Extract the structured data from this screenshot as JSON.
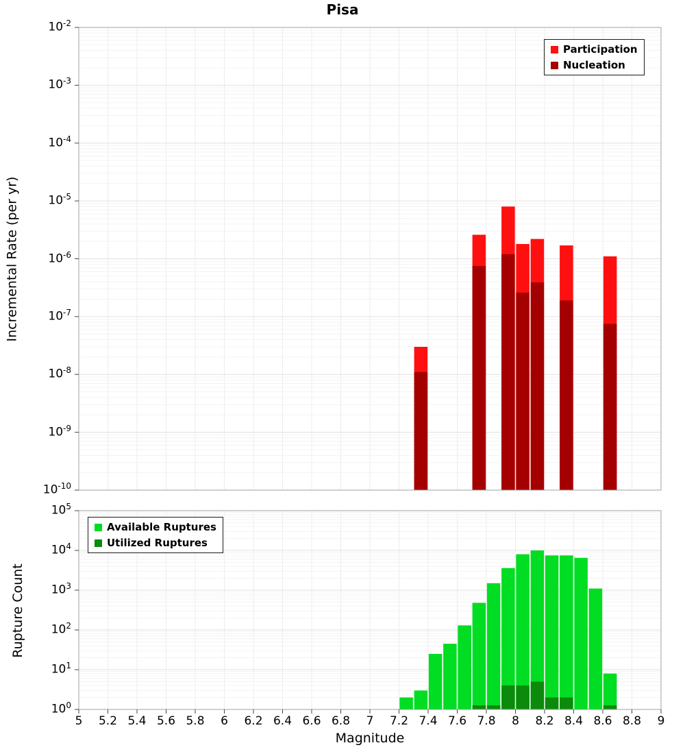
{
  "title": "Pisa",
  "y_tick_base": "10",
  "colors": {
    "participation": "#ff1010",
    "nucleation": "#a40000",
    "available": "#00dd22",
    "utilized": "#0b8a0b",
    "grid_major": "#e0e0e0",
    "grid_minor": "#f3f3f3",
    "grid_vertical": "#ececec",
    "plot_border": "#a0a0a0",
    "tick": "#444444"
  },
  "x_axis": {
    "label": "Magnitude",
    "min": 5,
    "max": 9,
    "tick_step": 0.2,
    "tick_labels": [
      "5",
      "5.2",
      "5.4",
      "5.6",
      "5.8",
      "6",
      "6.2",
      "6.4",
      "6.6",
      "6.8",
      "7",
      "7.2",
      "7.4",
      "7.6",
      "7.8",
      "8",
      "8.2",
      "8.4",
      "8.6",
      "8.8",
      "9"
    ]
  },
  "chart_data": [
    {
      "type": "bar",
      "title": "Pisa",
      "ylabel": "Incremental Rate (per yr)",
      "yscale": "log",
      "ylim": [
        1e-10,
        0.01
      ],
      "y_tick_exponents": [
        -2,
        -3,
        -4,
        -5,
        -6,
        -7,
        -8,
        -9,
        -10
      ],
      "bin_width": 0.1,
      "grid": true,
      "legend_position": "top-right",
      "legend": [
        {
          "label": "Participation",
          "series": "participation"
        },
        {
          "label": "Nucleation",
          "series": "nucleation"
        }
      ],
      "bars": [
        {
          "mag": 7.35,
          "participation": 3e-08,
          "nucleation": 1.1e-08
        },
        {
          "mag": 7.75,
          "participation": 2.6e-06,
          "nucleation": 7.5e-07
        },
        {
          "mag": 7.95,
          "participation": 8e-06,
          "nucleation": 1.2e-06
        },
        {
          "mag": 8.05,
          "participation": 1.8e-06,
          "nucleation": 2.6e-07
        },
        {
          "mag": 8.15,
          "participation": 2.2e-06,
          "nucleation": 3.9e-07
        },
        {
          "mag": 8.35,
          "participation": 1.7e-06,
          "nucleation": 1.9e-07
        },
        {
          "mag": 8.65,
          "participation": 1.1e-06,
          "nucleation": 7.5e-08
        }
      ]
    },
    {
      "type": "bar",
      "ylabel": "Rupture Count",
      "yscale": "log",
      "ylim": [
        1,
        100000
      ],
      "y_tick_exponents": [
        0,
        1,
        2,
        3,
        4,
        5
      ],
      "bin_width": 0.1,
      "grid": true,
      "legend_position": "top-left",
      "legend": [
        {
          "label": "Available Ruptures",
          "series": "available"
        },
        {
          "label": "Utilized Ruptures",
          "series": "utilized"
        }
      ],
      "bars": [
        {
          "mag": 7.25,
          "available": 2,
          "utilized": 0
        },
        {
          "mag": 7.35,
          "available": 3,
          "utilized": 0
        },
        {
          "mag": 7.45,
          "available": 25,
          "utilized": 0
        },
        {
          "mag": 7.55,
          "available": 45,
          "utilized": 0
        },
        {
          "mag": 7.65,
          "available": 130,
          "utilized": 0
        },
        {
          "mag": 7.75,
          "available": 480,
          "utilized": 1
        },
        {
          "mag": 7.85,
          "available": 1500,
          "utilized": 1
        },
        {
          "mag": 7.95,
          "available": 3600,
          "utilized": 4
        },
        {
          "mag": 8.05,
          "available": 8000,
          "utilized": 4
        },
        {
          "mag": 8.15,
          "available": 10000,
          "utilized": 5
        },
        {
          "mag": 8.25,
          "available": 7500,
          "utilized": 2
        },
        {
          "mag": 8.35,
          "available": 7500,
          "utilized": 2
        },
        {
          "mag": 8.45,
          "available": 6500,
          "utilized": 0
        },
        {
          "mag": 8.55,
          "available": 1100,
          "utilized": 0
        },
        {
          "mag": 8.65,
          "available": 8,
          "utilized": 1
        }
      ]
    }
  ]
}
